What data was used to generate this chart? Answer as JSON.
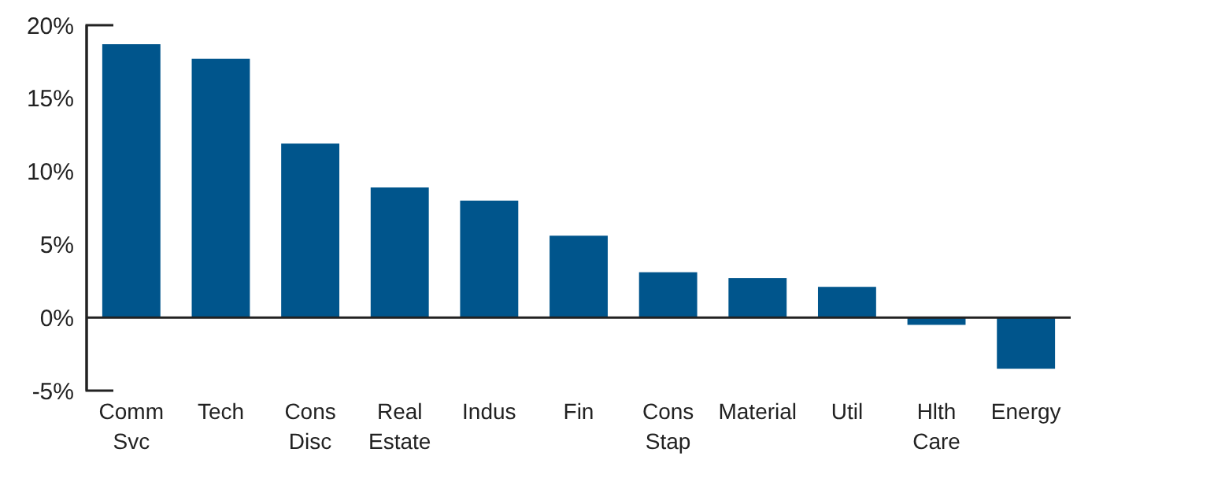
{
  "chart_data": {
    "type": "bar",
    "categories": [
      "Comm Svc",
      "Tech",
      "Cons Disc",
      "Real Estate",
      "Indus",
      "Fin",
      "Cons Stap",
      "Material",
      "Util",
      "Hlth Care",
      "Energy"
    ],
    "values": [
      18.7,
      17.7,
      11.9,
      8.9,
      8.0,
      5.6,
      3.1,
      2.7,
      2.1,
      -0.5,
      -3.5
    ],
    "color": "#00558c",
    "ylim": [
      -5,
      20
    ],
    "yticks": [
      {
        "value": -5,
        "label": "-5%"
      },
      {
        "value": 0,
        "label": "0%"
      },
      {
        "value": 5,
        "label": "5%"
      },
      {
        "value": 10,
        "label": "10%"
      },
      {
        "value": 15,
        "label": "15%"
      },
      {
        "value": 20,
        "label": "20%"
      }
    ]
  }
}
